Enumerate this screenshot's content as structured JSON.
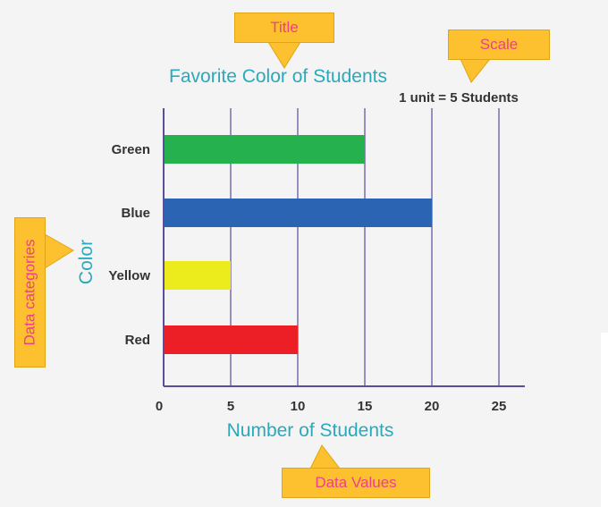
{
  "chart_data": {
    "type": "bar",
    "orientation": "horizontal",
    "title": "Favorite Color of Students",
    "scale_note": "1 unit = 5 Students",
    "xlabel": "Number of Students",
    "ylabel": "Color",
    "categories": [
      "Green",
      "Blue",
      "Yellow",
      "Red"
    ],
    "values": [
      15,
      20,
      5,
      10
    ],
    "bar_colors": [
      "#26b14f",
      "#2b64b2",
      "#eceb1b",
      "#ec1f27"
    ],
    "xlim": [
      0,
      27
    ],
    "xticks": [
      0,
      5,
      10,
      15,
      20,
      25
    ],
    "grid": true
  },
  "annotations": {
    "title": "Title",
    "scale": "Scale",
    "categories": "Data categories",
    "values": "Data Values"
  },
  "colors": {
    "title_teal": "#2aa9bd",
    "axis_purple": "#5b4c9c",
    "callout_fill": "#fdc02f",
    "callout_text": "#ec3f8c"
  }
}
